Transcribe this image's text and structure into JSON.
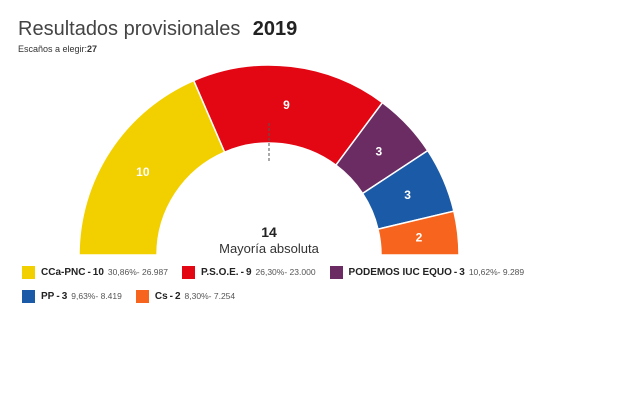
{
  "header": {
    "title": "Resultados provisionales",
    "year": "2019",
    "seats_label": "Escaños a elegir:",
    "seats_total": "27"
  },
  "chart_data": {
    "type": "pie",
    "subtype": "semicircle-parliament",
    "total_seats": 27,
    "majority": {
      "value": "14",
      "label": "Mayoría absoluta"
    },
    "series": [
      {
        "name": "CCa-PNC",
        "seats": 10,
        "percent": "30,86%",
        "votes": "26.987",
        "color": "#f2d000"
      },
      {
        "name": "P.S.O.E.",
        "seats": 9,
        "percent": "26,30%",
        "votes": "23.000",
        "color": "#e30613"
      },
      {
        "name": "PODEMOS IUC EQUO",
        "seats": 3,
        "percent": "10,62%",
        "votes": "9.289",
        "color": "#6b2c63"
      },
      {
        "name": "PP",
        "seats": 3,
        "percent": "9,63%",
        "votes": "8.419",
        "color": "#1b5aa6"
      },
      {
        "name": "Cs",
        "seats": 2,
        "percent": "8,30%",
        "votes": "7.254",
        "color": "#f7641e"
      }
    ]
  },
  "legend": {
    "rows": [
      [
        0,
        1,
        2
      ],
      [
        3,
        4
      ]
    ]
  }
}
